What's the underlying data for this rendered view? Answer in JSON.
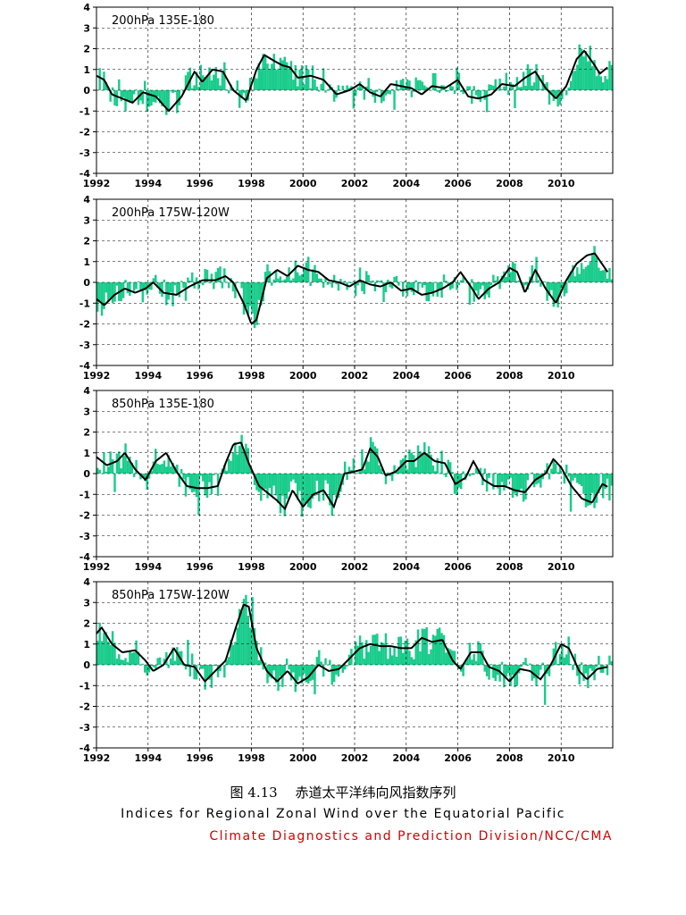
{
  "chart_data": [
    {
      "type": "bar",
      "title": "200hPa 135E-180",
      "x_start": 1992,
      "x_end": 2012,
      "ylim": [
        -4,
        4
      ],
      "y_ticks": [
        4,
        3,
        2,
        1,
        0,
        -1,
        -2,
        -3,
        -4
      ],
      "x_ticks": [
        "1992",
        "1994",
        "1996",
        "1998",
        "2000",
        "2002",
        "2004",
        "2006",
        "2008",
        "2010"
      ],
      "bar_color": "#19cc8c",
      "line_color": "#000000",
      "smooth_nodes": [
        [
          1992.0,
          0.7
        ],
        [
          1992.3,
          0.5
        ],
        [
          1992.6,
          -0.2
        ],
        [
          1993.0,
          -0.4
        ],
        [
          1993.4,
          -0.6
        ],
        [
          1993.8,
          -0.1
        ],
        [
          1994.3,
          -0.3
        ],
        [
          1994.8,
          -1.0
        ],
        [
          1995.3,
          -0.3
        ],
        [
          1995.8,
          0.9
        ],
        [
          1996.1,
          0.4
        ],
        [
          1996.5,
          1.0
        ],
        [
          1996.9,
          0.9
        ],
        [
          1997.3,
          0.0
        ],
        [
          1997.8,
          -0.5
        ],
        [
          1998.2,
          1.0
        ],
        [
          1998.5,
          1.7
        ],
        [
          1998.9,
          1.4
        ],
        [
          1999.2,
          1.2
        ],
        [
          1999.5,
          1.1
        ],
        [
          1999.8,
          0.6
        ],
        [
          2000.3,
          0.7
        ],
        [
          2000.8,
          0.5
        ],
        [
          2001.3,
          -0.2
        ],
        [
          2001.8,
          0.0
        ],
        [
          2002.2,
          0.3
        ],
        [
          2002.6,
          -0.1
        ],
        [
          2003.0,
          -0.3
        ],
        [
          2003.4,
          0.3
        ],
        [
          2003.8,
          0.2
        ],
        [
          2004.2,
          0.1
        ],
        [
          2004.6,
          -0.2
        ],
        [
          2005.0,
          0.2
        ],
        [
          2005.5,
          0.1
        ],
        [
          2006.0,
          0.5
        ],
        [
          2006.4,
          -0.3
        ],
        [
          2006.8,
          -0.4
        ],
        [
          2007.3,
          -0.2
        ],
        [
          2007.7,
          0.3
        ],
        [
          2008.2,
          0.2
        ],
        [
          2008.6,
          0.6
        ],
        [
          2009.0,
          0.9
        ],
        [
          2009.4,
          0.1
        ],
        [
          2009.8,
          -0.4
        ],
        [
          2010.2,
          0.2
        ],
        [
          2010.6,
          1.5
        ],
        [
          2010.9,
          1.9
        ],
        [
          2011.3,
          1.2
        ],
        [
          2011.5,
          0.8
        ],
        [
          2011.8,
          1.1
        ]
      ]
    },
    {
      "type": "bar",
      "title": "200hPa 175W-120W",
      "x_start": 1992,
      "x_end": 2012,
      "ylim": [
        -4,
        4
      ],
      "y_ticks": [
        4,
        3,
        2,
        1,
        0,
        -1,
        -2,
        -3,
        -4
      ],
      "x_ticks": [
        "1992",
        "1994",
        "1996",
        "1998",
        "2000",
        "2002",
        "2004",
        "2006",
        "2008",
        "2010"
      ],
      "bar_color": "#19cc8c",
      "line_color": "#000000",
      "smooth_nodes": [
        [
          1992.0,
          -0.8
        ],
        [
          1992.3,
          -1.1
        ],
        [
          1992.7,
          -0.6
        ],
        [
          1993.1,
          -0.3
        ],
        [
          1993.5,
          -0.5
        ],
        [
          1993.9,
          -0.3
        ],
        [
          1994.2,
          0.0
        ],
        [
          1994.6,
          -0.5
        ],
        [
          1995.1,
          -0.6
        ],
        [
          1995.6,
          -0.2
        ],
        [
          1996.1,
          0.1
        ],
        [
          1996.6,
          0.1
        ],
        [
          1997.0,
          0.3
        ],
        [
          1997.3,
          0.0
        ],
        [
          1997.7,
          -1.0
        ],
        [
          1998.0,
          -2.0
        ],
        [
          1998.2,
          -1.8
        ],
        [
          1998.6,
          0.2
        ],
        [
          1999.0,
          0.6
        ],
        [
          1999.4,
          0.3
        ],
        [
          1999.8,
          0.8
        ],
        [
          2000.2,
          0.6
        ],
        [
          2000.6,
          0.5
        ],
        [
          2001.0,
          0.1
        ],
        [
          2001.4,
          0.0
        ],
        [
          2001.8,
          -0.2
        ],
        [
          2002.2,
          0.1
        ],
        [
          2002.6,
          -0.1
        ],
        [
          2003.0,
          -0.2
        ],
        [
          2003.4,
          0.0
        ],
        [
          2003.8,
          -0.4
        ],
        [
          2004.2,
          -0.3
        ],
        [
          2004.6,
          -0.6
        ],
        [
          2005.0,
          -0.5
        ],
        [
          2005.4,
          -0.3
        ],
        [
          2005.8,
          0.0
        ],
        [
          2006.1,
          0.5
        ],
        [
          2006.5,
          -0.2
        ],
        [
          2006.8,
          -0.8
        ],
        [
          2007.2,
          -0.3
        ],
        [
          2007.6,
          0.0
        ],
        [
          2008.0,
          0.7
        ],
        [
          2008.3,
          0.5
        ],
        [
          2008.6,
          -0.5
        ],
        [
          2009.0,
          0.6
        ],
        [
          2009.4,
          -0.3
        ],
        [
          2009.8,
          -1.0
        ],
        [
          2010.2,
          0.1
        ],
        [
          2010.6,
          0.9
        ],
        [
          2011.0,
          1.3
        ],
        [
          2011.3,
          1.4
        ],
        [
          2011.8,
          0.5
        ]
      ]
    },
    {
      "type": "bar",
      "title": "850hPa 135E-180",
      "x_start": 1992,
      "x_end": 2012,
      "ylim": [
        -4,
        4
      ],
      "y_ticks": [
        4,
        3,
        2,
        1,
        0,
        -1,
        -2,
        -3,
        -4
      ],
      "x_ticks": [
        "1992",
        "1994",
        "1996",
        "1998",
        "2000",
        "2002",
        "2004",
        "2006",
        "2008",
        "2010"
      ],
      "bar_color": "#19cc8c",
      "line_color": "#000000",
      "smooth_nodes": [
        [
          1992.0,
          0.8
        ],
        [
          1992.4,
          0.4
        ],
        [
          1992.8,
          0.6
        ],
        [
          1993.1,
          1.0
        ],
        [
          1993.5,
          0.2
        ],
        [
          1993.9,
          -0.3
        ],
        [
          1994.3,
          0.6
        ],
        [
          1994.7,
          1.0
        ],
        [
          1995.1,
          0.1
        ],
        [
          1995.5,
          -0.6
        ],
        [
          1995.9,
          -0.7
        ],
        [
          1996.3,
          -0.7
        ],
        [
          1996.7,
          -0.6
        ],
        [
          1997.0,
          0.5
        ],
        [
          1997.3,
          1.4
        ],
        [
          1997.6,
          1.5
        ],
        [
          1997.9,
          0.5
        ],
        [
          1998.3,
          -0.6
        ],
        [
          1998.7,
          -1.0
        ],
        [
          1999.0,
          -1.3
        ],
        [
          1999.3,
          -1.7
        ],
        [
          1999.6,
          -0.8
        ],
        [
          2000.0,
          -1.6
        ],
        [
          2000.4,
          -1.0
        ],
        [
          2000.8,
          -0.8
        ],
        [
          2001.2,
          -1.6
        ],
        [
          2001.6,
          0.0
        ],
        [
          2002.0,
          0.1
        ],
        [
          2002.3,
          0.2
        ],
        [
          2002.6,
          1.2
        ],
        [
          2002.9,
          0.8
        ],
        [
          2003.2,
          -0.1
        ],
        [
          2003.6,
          0.1
        ],
        [
          2004.0,
          0.6
        ],
        [
          2004.3,
          0.6
        ],
        [
          2004.7,
          1.0
        ],
        [
          2005.1,
          0.6
        ],
        [
          2005.5,
          0.5
        ],
        [
          2005.9,
          -0.5
        ],
        [
          2006.3,
          -0.2
        ],
        [
          2006.6,
          0.6
        ],
        [
          2007.0,
          -0.3
        ],
        [
          2007.4,
          -0.6
        ],
        [
          2007.8,
          -0.6
        ],
        [
          2008.2,
          -0.8
        ],
        [
          2008.6,
          -0.9
        ],
        [
          2009.0,
          -0.3
        ],
        [
          2009.4,
          0.0
        ],
        [
          2009.7,
          0.7
        ],
        [
          2010.0,
          0.3
        ],
        [
          2010.4,
          -0.6
        ],
        [
          2010.8,
          -1.2
        ],
        [
          2011.2,
          -1.4
        ],
        [
          2011.6,
          -0.5
        ],
        [
          2011.9,
          -0.7
        ]
      ]
    },
    {
      "type": "bar",
      "title": "850hPa 175W-120W",
      "x_start": 1992,
      "x_end": 2012,
      "ylim": [
        -4,
        4
      ],
      "y_ticks": [
        4,
        3,
        2,
        1,
        0,
        -1,
        -2,
        -3,
        -4
      ],
      "x_ticks": [
        "1992",
        "1994",
        "1996",
        "1998",
        "2000",
        "2002",
        "2004",
        "2006",
        "2008",
        "2010"
      ],
      "bar_color": "#19cc8c",
      "line_color": "#000000",
      "smooth_nodes": [
        [
          1992.0,
          1.5
        ],
        [
          1992.2,
          1.8
        ],
        [
          1992.6,
          1.0
        ],
        [
          1993.0,
          0.6
        ],
        [
          1993.5,
          0.7
        ],
        [
          1993.9,
          0.2
        ],
        [
          1994.2,
          -0.3
        ],
        [
          1994.6,
          0.0
        ],
        [
          1995.0,
          0.8
        ],
        [
          1995.4,
          0.0
        ],
        [
          1995.8,
          -0.1
        ],
        [
          1996.2,
          -0.8
        ],
        [
          1996.6,
          -0.3
        ],
        [
          1997.0,
          0.2
        ],
        [
          1997.4,
          1.8
        ],
        [
          1997.7,
          2.9
        ],
        [
          1997.9,
          2.8
        ],
        [
          1998.2,
          0.8
        ],
        [
          1998.6,
          -0.3
        ],
        [
          1999.0,
          -0.8
        ],
        [
          1999.4,
          -0.3
        ],
        [
          1999.8,
          -0.9
        ],
        [
          2000.2,
          -0.6
        ],
        [
          2000.6,
          0.0
        ],
        [
          2001.0,
          -0.3
        ],
        [
          2001.4,
          -0.2
        ],
        [
          2001.8,
          0.3
        ],
        [
          2002.2,
          0.8
        ],
        [
          2002.6,
          1.0
        ],
        [
          2003.0,
          0.9
        ],
        [
          2003.4,
          0.9
        ],
        [
          2003.8,
          0.8
        ],
        [
          2004.2,
          0.8
        ],
        [
          2004.6,
          1.3
        ],
        [
          2005.0,
          1.1
        ],
        [
          2005.4,
          1.2
        ],
        [
          2005.8,
          0.2
        ],
        [
          2006.1,
          -0.2
        ],
        [
          2006.5,
          0.6
        ],
        [
          2006.9,
          0.6
        ],
        [
          2007.2,
          -0.1
        ],
        [
          2007.6,
          -0.3
        ],
        [
          2008.0,
          -0.8
        ],
        [
          2008.4,
          -0.2
        ],
        [
          2008.8,
          -0.3
        ],
        [
          2009.2,
          -0.7
        ],
        [
          2009.6,
          0.0
        ],
        [
          2010.0,
          1.0
        ],
        [
          2010.3,
          0.8
        ],
        [
          2010.7,
          -0.3
        ],
        [
          2011.0,
          -0.7
        ],
        [
          2011.4,
          -0.2
        ],
        [
          2011.8,
          -0.1
        ]
      ]
    }
  ],
  "caption": {
    "chinese": "图 4.13　 赤道太平洋纬向风指数序列",
    "english": "Indices for Regional Zonal Wind over the Equatorial Pacific",
    "organization": "Climate Diagnostics and Prediction Division/NCC/CMA"
  },
  "colors": {
    "bars": "#19cc8c",
    "line": "#000000",
    "organization_text": "#d40000"
  }
}
